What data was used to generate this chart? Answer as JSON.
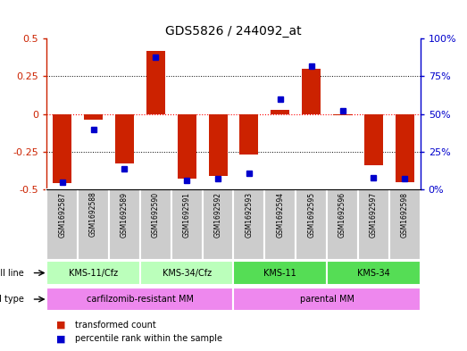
{
  "title": "GDS5826 / 244092_at",
  "samples": [
    "GSM1692587",
    "GSM1692588",
    "GSM1692589",
    "GSM1692590",
    "GSM1692591",
    "GSM1692592",
    "GSM1692593",
    "GSM1692594",
    "GSM1692595",
    "GSM1692596",
    "GSM1692597",
    "GSM1692598"
  ],
  "transformed_count": [
    -0.46,
    -0.04,
    -0.33,
    0.42,
    -0.43,
    -0.41,
    -0.27,
    0.03,
    0.3,
    -0.01,
    -0.34,
    -0.45
  ],
  "percentile_rank": [
    5,
    40,
    14,
    88,
    6,
    7,
    11,
    60,
    82,
    52,
    8,
    7
  ],
  "cell_line_groups": [
    {
      "label": "KMS-11/Cfz",
      "start": 0,
      "end": 3
    },
    {
      "label": "KMS-34/Cfz",
      "start": 3,
      "end": 6
    },
    {
      "label": "KMS-11",
      "start": 6,
      "end": 9
    },
    {
      "label": "KMS-34",
      "start": 9,
      "end": 12
    }
  ],
  "cell_type_groups": [
    {
      "label": "carfilzomib-resistant MM",
      "start": 0,
      "end": 6
    },
    {
      "label": "parental MM",
      "start": 6,
      "end": 12
    }
  ],
  "cell_line_colors": [
    "#bbffbb",
    "#bbffbb",
    "#55dd55",
    "#55dd55"
  ],
  "cell_type_color": "#ee88ee",
  "sample_box_color": "#cccccc",
  "bar_color": "#cc2200",
  "dot_color": "#0000cc",
  "ylim": [
    -0.5,
    0.5
  ],
  "y2lim": [
    0,
    100
  ],
  "yticks": [
    -0.5,
    -0.25,
    0,
    0.25,
    0.5
  ],
  "y2ticks": [
    0,
    25,
    50,
    75,
    100
  ],
  "y2ticklabels": [
    "0%",
    "25%",
    "50%",
    "75%",
    "100%"
  ],
  "dotted_lines": [
    -0.25,
    0.25
  ],
  "zero_line": 0
}
